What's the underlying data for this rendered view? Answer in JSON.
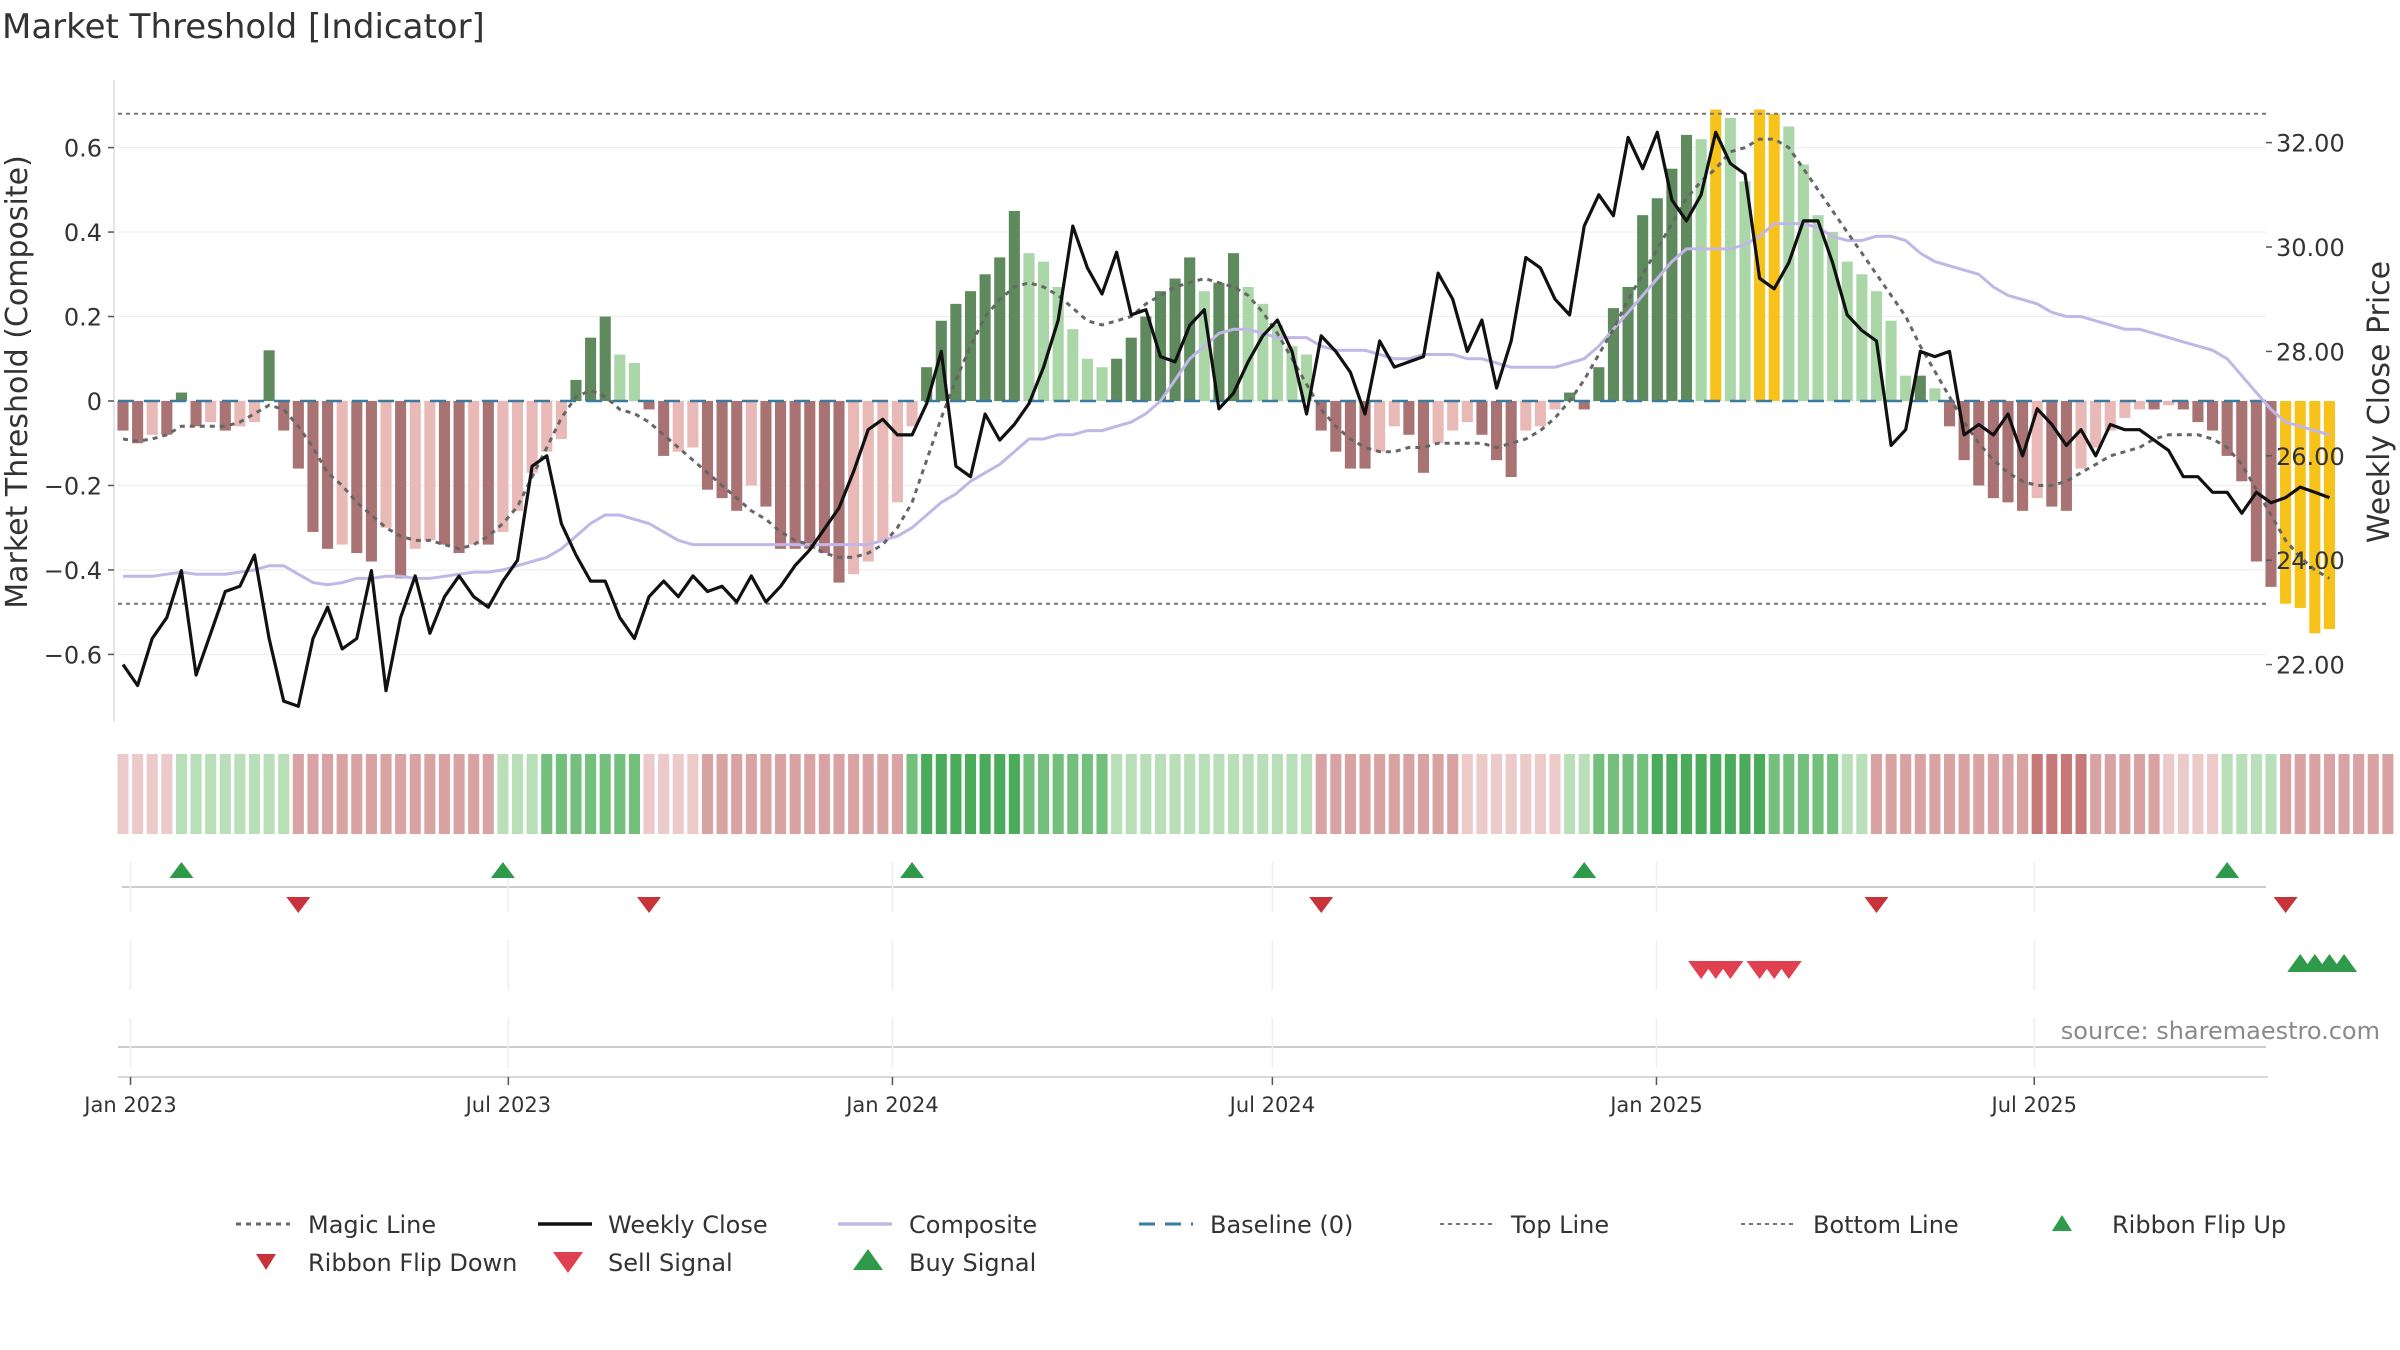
{
  "chart_data": {
    "type": "bar",
    "title": "Market Threshold [Indicator]",
    "ylabel_left": "Market Threshold (Composite)",
    "ylabel_right": "Weekly Close Price",
    "source": "source: sharemaestro.com",
    "x_start": "2022-12-26",
    "x_end": "2025-10-20",
    "x_tick_labels": [
      "Jan 2023",
      "Jul 2023",
      "Jan 2024",
      "Jul 2024",
      "Jan 2025",
      "Jul 2025"
    ],
    "x_tick_dates": [
      "2023-01-01",
      "2023-07-01",
      "2024-01-01",
      "2024-07-01",
      "2025-01-01",
      "2025-07-01"
    ],
    "ylim_left": [
      -0.76,
      0.76
    ],
    "yticks_left": [
      0.6,
      0.4,
      0.2,
      0,
      -0.2,
      -0.4,
      -0.6
    ],
    "ytick_labels_left": [
      "0.6",
      "0.4",
      "0.2",
      "0",
      "−0.2",
      "−0.4",
      "−0.6"
    ],
    "ylim_right": [
      20.9,
      33.2
    ],
    "yticks_right": [
      32,
      30,
      28,
      26,
      24,
      22
    ],
    "ytick_labels_right": [
      "32.00",
      "30.00",
      "28.00",
      "26.00",
      "24.00",
      "22.00"
    ],
    "top_line": 0.68,
    "bottom_line": -0.48,
    "legend": {
      "magic_line": "Magic Line",
      "weekly_close": "Weekly Close",
      "composite": "Composite",
      "baseline": "Baseline (0)",
      "top_line": "Top Line",
      "bottom_line": "Bottom Line",
      "ribbon_flip_up": "Ribbon Flip Up",
      "ribbon_flip_down": "Ribbon Flip Down",
      "sell_signal": "Sell Signal",
      "buy_signal": "Buy Signal"
    },
    "colors": {
      "dark_green": "#5e8a5e",
      "light_green": "#abd6a8",
      "dark_red": "#a97373",
      "light_red": "#e8b9b6",
      "gold": "#f7c21a",
      "close": "#111111",
      "composite": "#c1b7e6",
      "magic": "#666666",
      "baseline": "#3c7aa0",
      "threshold": "#777777",
      "flip_up": "#2e9a4a",
      "flip_down": "#c8323a",
      "sell": "#e04050",
      "buy": "#2e9a4a"
    },
    "histogram": [
      -0.07,
      -0.1,
      -0.08,
      -0.08,
      0.02,
      -0.06,
      -0.05,
      -0.07,
      -0.06,
      -0.05,
      0.12,
      -0.07,
      -0.16,
      -0.31,
      -0.35,
      -0.34,
      -0.36,
      -0.38,
      -0.3,
      -0.42,
      -0.35,
      -0.33,
      -0.34,
      -0.36,
      -0.34,
      -0.34,
      -0.31,
      -0.26,
      -0.17,
      -0.12,
      -0.09,
      0.05,
      0.15,
      0.2,
      0.11,
      0.09,
      -0.02,
      -0.13,
      -0.12,
      -0.11,
      -0.21,
      -0.23,
      -0.26,
      -0.2,
      -0.25,
      -0.35,
      -0.35,
      -0.35,
      -0.36,
      -0.43,
      -0.41,
      -0.38,
      -0.33,
      -0.24,
      -0.06,
      0.08,
      0.19,
      0.23,
      0.26,
      0.3,
      0.34,
      0.45,
      0.35,
      0.33,
      0.27,
      0.17,
      0.1,
      0.08,
      0.1,
      0.15,
      0.2,
      0.26,
      0.29,
      0.34,
      0.26,
      0.28,
      0.35,
      0.27,
      0.23,
      0.18,
      0.13,
      0.11,
      -0.07,
      -0.12,
      -0.16,
      -0.16,
      -0.12,
      -0.06,
      -0.08,
      -0.17,
      -0.1,
      -0.07,
      -0.05,
      -0.08,
      -0.14,
      -0.18,
      -0.07,
      -0.06,
      -0.02,
      0.02,
      -0.02,
      0.08,
      0.22,
      0.27,
      0.44,
      0.48,
      0.55,
      0.63,
      0.62,
      0.69,
      0.67,
      0.52,
      0.69,
      0.68,
      0.65,
      0.56,
      0.44,
      0.4,
      0.33,
      0.3,
      0.26,
      0.19,
      0.06,
      0.06,
      0.03,
      -0.06,
      -0.14,
      -0.2,
      -0.23,
      -0.24,
      -0.26,
      -0.23,
      -0.25,
      -0.26,
      -0.16,
      -0.11,
      -0.07,
      -0.04,
      -0.02,
      -0.02,
      -0.01,
      -0.02,
      -0.05,
      -0.07,
      -0.13,
      -0.19,
      -0.38,
      -0.44,
      -0.48,
      -0.49,
      -0.55,
      -0.54
    ],
    "magic_line": [
      -0.09,
      -0.095,
      -0.09,
      -0.08,
      -0.06,
      -0.06,
      -0.06,
      -0.06,
      -0.05,
      -0.03,
      -0.01,
      -0.02,
      -0.06,
      -0.11,
      -0.17,
      -0.2,
      -0.24,
      -0.27,
      -0.3,
      -0.32,
      -0.33,
      -0.33,
      -0.34,
      -0.35,
      -0.34,
      -0.32,
      -0.29,
      -0.25,
      -0.18,
      -0.11,
      -0.04,
      0.01,
      0.025,
      0.01,
      -0.02,
      -0.03,
      -0.05,
      -0.08,
      -0.11,
      -0.14,
      -0.17,
      -0.2,
      -0.23,
      -0.26,
      -0.28,
      -0.31,
      -0.33,
      -0.34,
      -0.36,
      -0.37,
      -0.37,
      -0.36,
      -0.34,
      -0.3,
      -0.24,
      -0.14,
      -0.04,
      0.05,
      0.13,
      0.2,
      0.24,
      0.27,
      0.28,
      0.27,
      0.25,
      0.22,
      0.19,
      0.18,
      0.19,
      0.2,
      0.23,
      0.25,
      0.27,
      0.28,
      0.29,
      0.28,
      0.27,
      0.25,
      0.21,
      0.16,
      0.1,
      0.04,
      -0.02,
      -0.06,
      -0.09,
      -0.11,
      -0.12,
      -0.12,
      -0.11,
      -0.11,
      -0.1,
      -0.1,
      -0.1,
      -0.1,
      -0.11,
      -0.1,
      -0.09,
      -0.07,
      -0.04,
      0.0,
      0.05,
      0.11,
      0.17,
      0.24,
      0.3,
      0.36,
      0.42,
      0.48,
      0.52,
      0.55,
      0.59,
      0.6,
      0.62,
      0.62,
      0.6,
      0.55,
      0.5,
      0.45,
      0.4,
      0.35,
      0.3,
      0.25,
      0.2,
      0.13,
      0.07,
      0.01,
      -0.05,
      -0.1,
      -0.14,
      -0.17,
      -0.19,
      -0.2,
      -0.2,
      -0.19,
      -0.17,
      -0.15,
      -0.13,
      -0.12,
      -0.11,
      -0.09,
      -0.08,
      -0.08,
      -0.08,
      -0.09,
      -0.11,
      -0.15,
      -0.21,
      -0.27,
      -0.33,
      -0.37,
      -0.4,
      -0.42
    ],
    "composite": [
      -0.415,
      -0.415,
      -0.415,
      -0.41,
      -0.405,
      -0.41,
      -0.41,
      -0.41,
      -0.405,
      -0.4,
      -0.39,
      -0.39,
      -0.41,
      -0.43,
      -0.435,
      -0.43,
      -0.42,
      -0.42,
      -0.415,
      -0.415,
      -0.42,
      -0.42,
      -0.415,
      -0.41,
      -0.405,
      -0.405,
      -0.4,
      -0.39,
      -0.38,
      -0.37,
      -0.35,
      -0.32,
      -0.29,
      -0.27,
      -0.27,
      -0.28,
      -0.29,
      -0.31,
      -0.33,
      -0.34,
      -0.34,
      -0.34,
      -0.34,
      -0.34,
      -0.34,
      -0.34,
      -0.34,
      -0.34,
      -0.34,
      -0.34,
      -0.34,
      -0.34,
      -0.33,
      -0.32,
      -0.3,
      -0.27,
      -0.24,
      -0.22,
      -0.19,
      -0.17,
      -0.15,
      -0.12,
      -0.09,
      -0.09,
      -0.08,
      -0.08,
      -0.07,
      -0.07,
      -0.06,
      -0.05,
      -0.03,
      0.0,
      0.05,
      0.1,
      0.13,
      0.16,
      0.17,
      0.17,
      0.16,
      0.15,
      0.15,
      0.15,
      0.13,
      0.12,
      0.12,
      0.12,
      0.11,
      0.1,
      0.1,
      0.11,
      0.11,
      0.11,
      0.1,
      0.1,
      0.09,
      0.08,
      0.08,
      0.08,
      0.08,
      0.09,
      0.1,
      0.13,
      0.17,
      0.21,
      0.25,
      0.29,
      0.33,
      0.36,
      0.36,
      0.36,
      0.36,
      0.37,
      0.39,
      0.42,
      0.42,
      0.42,
      0.41,
      0.39,
      0.38,
      0.38,
      0.39,
      0.39,
      0.38,
      0.35,
      0.33,
      0.32,
      0.31,
      0.3,
      0.27,
      0.25,
      0.24,
      0.23,
      0.21,
      0.2,
      0.2,
      0.19,
      0.18,
      0.17,
      0.17,
      0.16,
      0.15,
      0.14,
      0.13,
      0.12,
      0.1,
      0.06,
      0.02,
      -0.02,
      -0.05,
      -0.06,
      -0.07,
      -0.08
    ],
    "weekly_close": [
      22.0,
      21.6,
      22.5,
      22.9,
      23.8,
      21.8,
      22.6,
      23.4,
      23.5,
      24.1,
      22.5,
      21.3,
      21.2,
      22.5,
      23.1,
      22.3,
      22.5,
      23.8,
      21.5,
      22.9,
      23.7,
      22.6,
      23.3,
      23.7,
      23.3,
      23.1,
      23.6,
      24.0,
      25.8,
      26.0,
      24.7,
      24.1,
      23.6,
      23.6,
      22.9,
      22.5,
      23.3,
      23.6,
      23.3,
      23.7,
      23.4,
      23.5,
      23.2,
      23.7,
      23.2,
      23.5,
      23.9,
      24.2,
      24.6,
      25.0,
      25.7,
      26.5,
      26.7,
      26.4,
      26.4,
      27.0,
      28.0,
      25.8,
      25.6,
      26.8,
      26.3,
      26.6,
      27.0,
      27.7,
      28.6,
      30.4,
      29.6,
      29.1,
      29.9,
      28.7,
      28.8,
      27.9,
      27.8,
      28.5,
      28.8,
      26.9,
      27.2,
      27.8,
      28.3,
      28.6,
      28.0,
      26.8,
      28.3,
      28.0,
      27.6,
      26.8,
      28.2,
      27.7,
      27.8,
      27.9,
      29.5,
      29.0,
      28.0,
      28.6,
      27.3,
      28.2,
      29.8,
      29.6,
      29.0,
      28.7,
      30.4,
      31.0,
      30.6,
      32.1,
      31.5,
      32.2,
      30.9,
      30.5,
      31.0,
      32.2,
      31.6,
      31.4,
      29.4,
      29.2,
      29.7,
      30.5,
      30.5,
      29.7,
      28.7,
      28.4,
      28.2,
      26.2,
      26.5,
      28.0,
      27.9,
      28.0,
      26.4,
      26.6,
      26.4,
      26.8,
      26.0,
      26.9,
      26.6,
      26.2,
      26.5,
      26.0,
      26.6,
      26.5,
      26.5,
      26.3,
      26.1,
      25.6,
      25.6,
      25.3,
      25.3,
      24.9,
      25.3,
      25.1,
      25.2,
      25.4,
      25.3,
      25.2
    ],
    "ribbon": [
      -1,
      -1,
      -1,
      -1,
      1,
      1,
      1,
      1,
      1,
      1,
      1,
      1,
      -2,
      -2,
      -2,
      -2,
      -2,
      -2,
      -2,
      -2,
      -2,
      -2,
      -2,
      -2,
      -2,
      -2,
      1,
      1,
      1,
      2,
      2,
      2,
      2,
      2,
      2,
      2,
      -1,
      -1,
      -1,
      -1,
      -2,
      -2,
      -2,
      -2,
      -2,
      -2,
      -2,
      -2,
      -2,
      -2,
      -2,
      -2,
      -2,
      -2,
      2,
      3,
      3,
      3,
      3,
      3,
      3,
      3,
      2,
      2,
      2,
      2,
      2,
      2,
      1,
      1,
      1,
      1,
      1,
      1,
      1,
      1,
      1,
      1,
      1,
      1,
      1,
      1,
      -2,
      -2,
      -2,
      -2,
      -2,
      -2,
      -2,
      -2,
      -2,
      -2,
      -1,
      -1,
      -1,
      -1,
      -1,
      -1,
      -1,
      1,
      1,
      2,
      2,
      2,
      2,
      3,
      3,
      3,
      3,
      3,
      3,
      3,
      3,
      2,
      2,
      2,
      2,
      2,
      1,
      1,
      -2,
      -2,
      -2,
      -2,
      -2,
      -2,
      -2,
      -2,
      -2,
      -2,
      -2,
      -3,
      -3,
      -3,
      -3,
      -2,
      -2,
      -2,
      -2,
      -2,
      -1,
      -1,
      -1,
      -1,
      1,
      1,
      1,
      1,
      -2,
      -2,
      -2,
      -2,
      -2,
      -2,
      -2,
      -2
    ],
    "ribbon_flip_up_idx": [
      4,
      26,
      54,
      100,
      144
    ],
    "ribbon_flip_down_idx": [
      12,
      36,
      82,
      120,
      148
    ],
    "sell_signal_idx": [
      108,
      109,
      110,
      112,
      113,
      114
    ],
    "buy_signal_idx": [
      149,
      150,
      151,
      152
    ]
  }
}
